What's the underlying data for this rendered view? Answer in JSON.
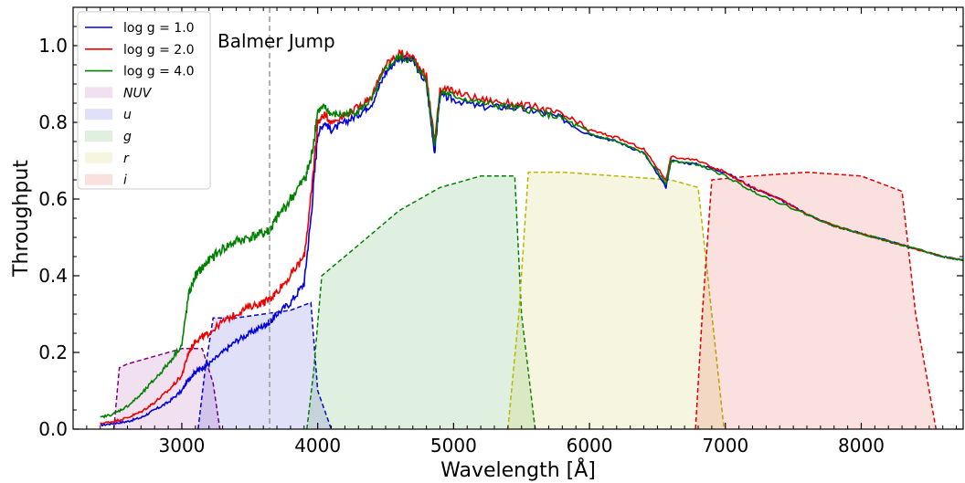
{
  "chart_data": {
    "type": "line",
    "xlabel": "Wavelength [Å]",
    "ylabel": "Throughput",
    "xlim": [
      2200,
      8750
    ],
    "ylim": [
      0.0,
      1.1
    ],
    "x_ticks": [
      3000,
      4000,
      5000,
      6000,
      7000,
      8000
    ],
    "x_tick_labels": [
      "3000",
      "4000",
      "5000",
      "6000",
      "7000",
      "8000"
    ],
    "y_ticks": [
      0.0,
      0.2,
      0.4,
      0.6,
      0.8,
      1.0
    ],
    "y_tick_labels": [
      "0.0",
      "0.2",
      "0.4",
      "0.6",
      "0.8",
      "1.0"
    ],
    "grid": false,
    "legend_position": "top-left",
    "annotations": [
      {
        "text": "Balmer Jump",
        "x": 3646,
        "line": "vertical-dashed",
        "color": "#999999"
      }
    ],
    "series": [
      {
        "name": "log g = 1.0",
        "color": "#0000dd",
        "x": [
          2400,
          2500,
          2600,
          2700,
          2800,
          2900,
          3000,
          3050,
          3100,
          3150,
          3200,
          3300,
          3400,
          3500,
          3600,
          3650,
          3700,
          3800,
          3900,
          3950,
          4000,
          4050,
          4100,
          4200,
          4300,
          4400,
          4500,
          4600,
          4700,
          4800,
          4861,
          4900,
          5000,
          5200,
          5400,
          5600,
          5800,
          6000,
          6200,
          6400,
          6563,
          6600,
          6800,
          7000,
          7200,
          7400,
          7600,
          7800,
          8000,
          8200,
          8400,
          8600,
          8750
        ],
        "y": [
          0.01,
          0.015,
          0.02,
          0.03,
          0.05,
          0.07,
          0.1,
          0.13,
          0.15,
          0.16,
          0.17,
          0.2,
          0.23,
          0.25,
          0.27,
          0.28,
          0.3,
          0.33,
          0.38,
          0.55,
          0.77,
          0.8,
          0.78,
          0.8,
          0.82,
          0.85,
          0.93,
          0.97,
          0.96,
          0.9,
          0.72,
          0.87,
          0.86,
          0.84,
          0.84,
          0.83,
          0.81,
          0.77,
          0.75,
          0.72,
          0.63,
          0.7,
          0.69,
          0.67,
          0.63,
          0.6,
          0.56,
          0.53,
          0.51,
          0.49,
          0.47,
          0.45,
          0.44
        ]
      },
      {
        "name": "log g = 2.0",
        "color": "#ee0000",
        "x": [
          2400,
          2500,
          2600,
          2700,
          2800,
          2900,
          3000,
          3050,
          3100,
          3150,
          3200,
          3300,
          3400,
          3500,
          3600,
          3650,
          3700,
          3800,
          3900,
          3950,
          4000,
          4050,
          4100,
          4200,
          4300,
          4400,
          4500,
          4600,
          4700,
          4800,
          4861,
          4900,
          5000,
          5200,
          5400,
          5600,
          5800,
          6000,
          6200,
          6400,
          6563,
          6600,
          6800,
          7000,
          7200,
          7400,
          7600,
          7800,
          8000,
          8200,
          8400,
          8600,
          8750
        ],
        "y": [
          0.015,
          0.02,
          0.03,
          0.045,
          0.07,
          0.1,
          0.14,
          0.2,
          0.23,
          0.24,
          0.25,
          0.28,
          0.3,
          0.32,
          0.33,
          0.34,
          0.36,
          0.4,
          0.45,
          0.6,
          0.8,
          0.82,
          0.8,
          0.82,
          0.84,
          0.87,
          0.95,
          0.98,
          0.97,
          0.92,
          0.75,
          0.89,
          0.88,
          0.86,
          0.85,
          0.84,
          0.82,
          0.78,
          0.76,
          0.73,
          0.65,
          0.71,
          0.7,
          0.67,
          0.63,
          0.6,
          0.56,
          0.53,
          0.51,
          0.49,
          0.47,
          0.45,
          0.44
        ]
      },
      {
        "name": "log g = 4.0",
        "color": "#008000",
        "x": [
          2400,
          2500,
          2600,
          2700,
          2800,
          2900,
          3000,
          3050,
          3100,
          3150,
          3200,
          3300,
          3400,
          3500,
          3600,
          3650,
          3700,
          3800,
          3900,
          3950,
          4000,
          4050,
          4100,
          4200,
          4300,
          4400,
          4500,
          4600,
          4700,
          4800,
          4861,
          4900,
          5000,
          5200,
          5400,
          5600,
          5800,
          6000,
          6200,
          6400,
          6563,
          6600,
          6800,
          7000,
          7200,
          7400,
          7600,
          7800,
          8000,
          8200,
          8400,
          8600,
          8750
        ],
        "y": [
          0.03,
          0.04,
          0.06,
          0.09,
          0.13,
          0.17,
          0.22,
          0.35,
          0.4,
          0.42,
          0.44,
          0.47,
          0.49,
          0.5,
          0.51,
          0.52,
          0.55,
          0.6,
          0.65,
          0.7,
          0.83,
          0.84,
          0.82,
          0.82,
          0.83,
          0.86,
          0.94,
          0.97,
          0.96,
          0.91,
          0.74,
          0.88,
          0.87,
          0.85,
          0.84,
          0.83,
          0.81,
          0.77,
          0.75,
          0.72,
          0.64,
          0.7,
          0.69,
          0.66,
          0.62,
          0.59,
          0.56,
          0.53,
          0.51,
          0.49,
          0.47,
          0.45,
          0.44
        ]
      }
    ],
    "bands": [
      {
        "name": "NUV",
        "color": "#800080",
        "x": [
          2500,
          2540,
          2600,
          2800,
          3000,
          3150,
          3230,
          3280
        ],
        "y": [
          0.0,
          0.16,
          0.17,
          0.19,
          0.21,
          0.21,
          0.12,
          0.0
        ]
      },
      {
        "name": "u",
        "color": "#0000cc",
        "x": [
          3120,
          3170,
          3230,
          3400,
          3600,
          3800,
          3950,
          4000,
          4100
        ],
        "y": [
          0.0,
          0.15,
          0.29,
          0.29,
          0.3,
          0.31,
          0.33,
          0.1,
          0.0
        ]
      },
      {
        "name": "g",
        "color": "#008000",
        "x": [
          3920,
          3970,
          4030,
          4300,
          4600,
          4900,
          5200,
          5450,
          5500,
          5600
        ],
        "y": [
          0.0,
          0.15,
          0.4,
          0.48,
          0.57,
          0.63,
          0.66,
          0.66,
          0.3,
          0.0
        ]
      },
      {
        "name": "r",
        "color": "#b8b800",
        "x": [
          5400,
          5480,
          5550,
          5800,
          6200,
          6600,
          6800,
          6900,
          6990
        ],
        "y": [
          0.0,
          0.3,
          0.67,
          0.67,
          0.66,
          0.65,
          0.63,
          0.3,
          0.0
        ]
      },
      {
        "name": "i",
        "color": "#dd0000",
        "x": [
          6780,
          6830,
          6900,
          7200,
          7600,
          8000,
          8300,
          8400,
          8550
        ],
        "y": [
          0.0,
          0.3,
          0.65,
          0.66,
          0.67,
          0.66,
          0.62,
          0.3,
          0.0
        ]
      }
    ]
  }
}
